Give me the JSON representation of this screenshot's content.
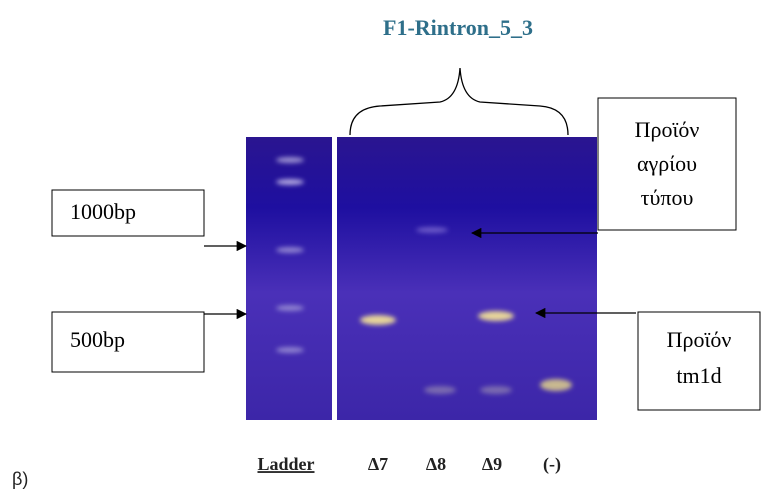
{
  "title": "F1-Rintron_5_3",
  "markers": [
    "1000bp",
    "500bp"
  ],
  "product_boxes": [
    {
      "lines": [
        "Προϊόν",
        "αγρίου",
        "τύπου"
      ]
    },
    {
      "lines": [
        "Προϊόν",
        "tm1d"
      ]
    }
  ],
  "lanes": [
    "Ladder",
    "Δ7",
    "Δ8",
    "Δ9",
    "(-)"
  ],
  "panel_label": "β)"
}
